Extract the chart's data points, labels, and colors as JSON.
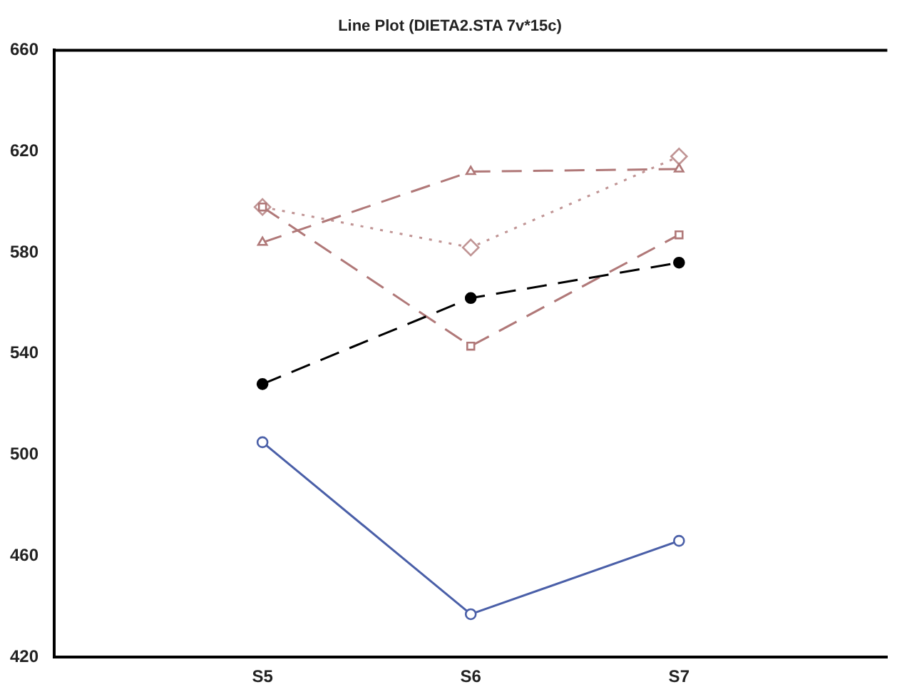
{
  "chart_data": {
    "type": "line",
    "title": "Line Plot (DIETA2.STA 7v*15c)",
    "categories": [
      null,
      "S5",
      "S6",
      "S7",
      null
    ],
    "series": [
      {
        "color": "#4a5fa8",
        "values": [
          null,
          505,
          437,
          466,
          null
        ],
        "marker": "circle",
        "line_style": "solid"
      },
      {
        "color": "#000000",
        "values": [
          null,
          528,
          562,
          576,
          null
        ],
        "marker": "circle",
        "line_style": "dashed"
      },
      {
        "color": "#b07878",
        "values": [
          null,
          598,
          543,
          587,
          null
        ],
        "marker": "square",
        "line_style": "dashed"
      },
      {
        "color": "#b07878",
        "values": [
          null,
          584,
          612,
          613,
          null
        ],
        "marker": "triangle",
        "line_style": "dashed"
      },
      {
        "color": "#c09494",
        "values": [
          null,
          598,
          582,
          618,
          null
        ],
        "marker": "diamond",
        "line_style": "dotted"
      }
    ],
    "ylim": [
      420,
      660
    ],
    "yticks": [
      420,
      460,
      500,
      540,
      580,
      620,
      660
    ],
    "grid": false,
    "legend": false
  }
}
